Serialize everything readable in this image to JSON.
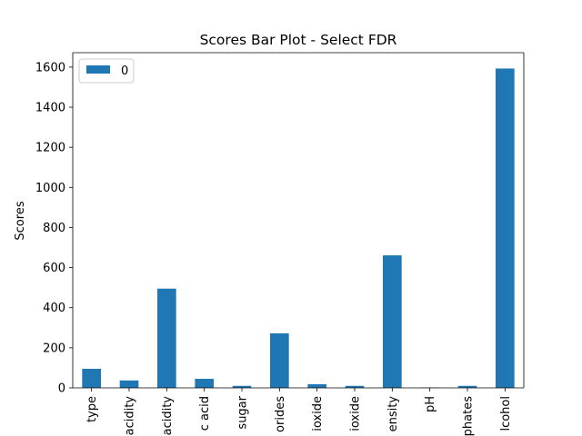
{
  "chart_data": {
    "type": "bar",
    "title": "Scores Bar Plot - Select FDR",
    "xlabel": "",
    "ylabel": "Scores",
    "categories": [
      "type",
      "acidity",
      "acidity",
      "c acid",
      "sugar",
      "orides",
      "ioxide",
      "ioxide",
      "ensity",
      "pH",
      "phates",
      "lcohol"
    ],
    "series": [
      {
        "name": "0",
        "color": "#1f77b4",
        "values": [
          95,
          37,
          495,
          45,
          10,
          272,
          18,
          10,
          661,
          2,
          10,
          1593
        ]
      }
    ],
    "ylim": [
      0,
      1672
    ],
    "yticks": [
      0,
      200,
      400,
      600,
      800,
      1000,
      1200,
      1400,
      1600
    ],
    "legend": {
      "placement": "top-left",
      "entries": [
        "0"
      ]
    },
    "grid": false
  }
}
